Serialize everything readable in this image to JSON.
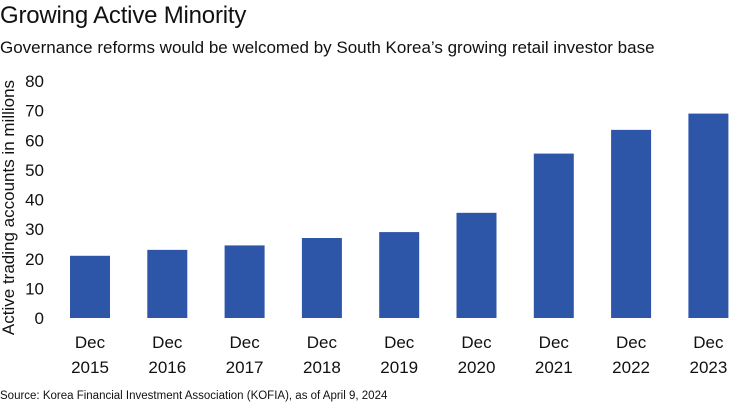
{
  "header": {
    "title": "Growing Active Minority",
    "subtitle": "Governance reforms would be welcomed by South Korea’s growing retail investor base"
  },
  "footer": {
    "source": "Source: Korea Financial Investment Association (KOFIA), as of April 9, 2024"
  },
  "chart_data": {
    "type": "bar",
    "title": "Growing Active Minority",
    "subtitle": "Governance reforms would be welcomed by South Korea’s growing retail investor base",
    "xlabel": "",
    "ylabel": "Active trading accounts in millions",
    "categories": [
      [
        "Dec",
        "2015"
      ],
      [
        "Dec",
        "2016"
      ],
      [
        "Dec",
        "2017"
      ],
      [
        "Dec",
        "2018"
      ],
      [
        "Dec",
        "2019"
      ],
      [
        "Dec",
        "2020"
      ],
      [
        "Dec",
        "2021"
      ],
      [
        "Dec",
        "2022"
      ],
      [
        "Dec",
        "2023"
      ]
    ],
    "values": [
      21,
      23,
      24.5,
      27,
      29,
      35.5,
      55.5,
      63.5,
      69
    ],
    "ylim": [
      0,
      80
    ],
    "yticks": [
      0,
      10,
      20,
      30,
      40,
      50,
      60,
      70,
      80
    ],
    "grid": false,
    "legend": "none",
    "bar_color": "#2e56a8"
  }
}
